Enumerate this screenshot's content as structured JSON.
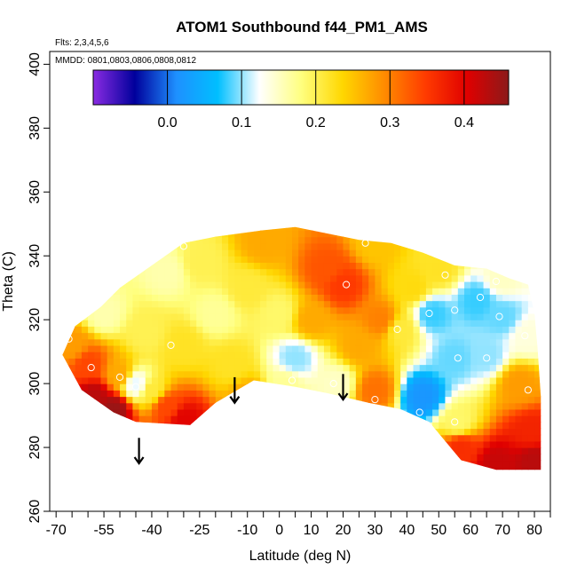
{
  "chart_data": {
    "type": "heatmap",
    "title": "ATOM1 Southbound f44_PM1_AMS",
    "annotations": [
      "Flts: 2,3,4,5,6",
      "MMDD: 0801,0803,0806,0808,0812"
    ],
    "xlabel": "Latitude (deg N)",
    "ylabel": "Theta (C)",
    "xlim": [
      -72,
      85
    ],
    "ylim": [
      260,
      404
    ],
    "x_tick_labels": [
      "-70",
      "-55",
      "-40",
      "-25",
      "-10",
      "0",
      "10",
      "20",
      "30",
      "40",
      "50",
      "60",
      "70",
      "80"
    ],
    "x_tick_values": [
      -70,
      -55,
      -40,
      -25,
      -10,
      0,
      10,
      20,
      30,
      40,
      50,
      60,
      70,
      80
    ],
    "x_minor_ticks": [
      -65,
      -60,
      -50,
      -45,
      -35,
      -30,
      -20,
      -15,
      -5,
      5,
      15,
      25,
      35,
      45,
      55,
      65,
      75,
      85
    ],
    "y_tick_labels": [
      "260",
      "280",
      "300",
      "320",
      "340",
      "360",
      "380",
      "400"
    ],
    "y_tick_values": [
      260,
      280,
      300,
      320,
      340,
      360,
      380,
      400
    ],
    "colorbar": {
      "range": [
        -0.1,
        0.46
      ],
      "tick_values": [
        0.0,
        0.1,
        0.2,
        0.3,
        0.4
      ],
      "tick_labels": [
        "0.0",
        "0.1",
        "0.2",
        "0.3",
        "0.4"
      ],
      "colors": [
        "#8a2be2",
        "#00009c",
        "#1e90ff",
        "#00bfff",
        "#ffffff",
        "#ffff80",
        "#ffd700",
        "#ff8c00",
        "#ff3b00",
        "#e00000",
        "#8b1a1a"
      ]
    },
    "field_boundary_theta": [
      [
        -68,
        309
      ],
      [
        -64,
        318
      ],
      [
        -56,
        324
      ],
      [
        -50,
        330
      ],
      [
        -40,
        337
      ],
      [
        -30,
        344
      ],
      [
        -20,
        346
      ],
      [
        -5,
        348
      ],
      [
        5,
        349
      ],
      [
        15,
        347
      ],
      [
        25,
        345
      ],
      [
        35,
        344
      ],
      [
        45,
        341
      ],
      [
        55,
        337
      ],
      [
        65,
        336
      ],
      [
        72,
        333
      ],
      [
        78,
        331
      ],
      [
        80,
        322
      ],
      [
        81,
        311
      ],
      [
        82,
        296
      ],
      [
        82,
        273
      ],
      [
        68,
        273
      ],
      [
        57,
        276
      ],
      [
        52,
        282
      ],
      [
        47,
        288
      ],
      [
        38,
        292
      ],
      [
        28,
        294
      ],
      [
        15,
        297
      ],
      [
        5,
        299
      ],
      [
        -8,
        301
      ],
      [
        -20,
        294
      ],
      [
        -28,
        287
      ],
      [
        -45,
        288
      ],
      [
        -52,
        291
      ],
      [
        -62,
        298
      ],
      [
        -68,
        309
      ]
    ],
    "field_points": [
      {
        "lat": -65,
        "theta": 312,
        "value": 0.28
      },
      {
        "lat": -60,
        "theta": 306,
        "value": 0.34
      },
      {
        "lat": -58,
        "theta": 296,
        "value": 0.43
      },
      {
        "lat": -52,
        "theta": 292,
        "value": 0.45
      },
      {
        "lat": -50,
        "theta": 303,
        "value": 0.27
      },
      {
        "lat": -45,
        "theta": 300,
        "value": 0.12
      },
      {
        "lat": -40,
        "theta": 298,
        "value": 0.21
      },
      {
        "lat": -35,
        "theta": 293,
        "value": 0.34
      },
      {
        "lat": -30,
        "theta": 289,
        "value": 0.4
      },
      {
        "lat": -55,
        "theta": 322,
        "value": 0.16
      },
      {
        "lat": -42,
        "theta": 316,
        "value": 0.2
      },
      {
        "lat": -30,
        "theta": 312,
        "value": 0.22
      },
      {
        "lat": -35,
        "theta": 335,
        "value": 0.16
      },
      {
        "lat": -25,
        "theta": 338,
        "value": 0.2
      },
      {
        "lat": -20,
        "theta": 322,
        "value": 0.17
      },
      {
        "lat": -15,
        "theta": 306,
        "value": 0.22
      },
      {
        "lat": -10,
        "theta": 296,
        "value": 0.27
      },
      {
        "lat": -10,
        "theta": 330,
        "value": 0.21
      },
      {
        "lat": -5,
        "theta": 344,
        "value": 0.27
      },
      {
        "lat": 2,
        "theta": 300,
        "value": 0.17
      },
      {
        "lat": 5,
        "theta": 308,
        "value": 0.1
      },
      {
        "lat": 0,
        "theta": 322,
        "value": 0.19
      },
      {
        "lat": 10,
        "theta": 320,
        "value": 0.27
      },
      {
        "lat": 15,
        "theta": 336,
        "value": 0.33
      },
      {
        "lat": 20,
        "theta": 331,
        "value": 0.35
      },
      {
        "lat": 18,
        "theta": 300,
        "value": 0.15
      },
      {
        "lat": 25,
        "theta": 312,
        "value": 0.27
      },
      {
        "lat": 30,
        "theta": 298,
        "value": 0.31
      },
      {
        "lat": 32,
        "theta": 320,
        "value": 0.3
      },
      {
        "lat": 30,
        "theta": 344,
        "value": 0.25
      },
      {
        "lat": 38,
        "theta": 317,
        "value": 0.21
      },
      {
        "lat": 42,
        "theta": 330,
        "value": 0.23
      },
      {
        "lat": 45,
        "theta": 296,
        "value": 0.02
      },
      {
        "lat": 48,
        "theta": 322,
        "value": 0.08
      },
      {
        "lat": 50,
        "theta": 336,
        "value": 0.22
      },
      {
        "lat": 55,
        "theta": 308,
        "value": 0.09
      },
      {
        "lat": 56,
        "theta": 288,
        "value": 0.19
      },
      {
        "lat": 57,
        "theta": 280,
        "value": 0.36
      },
      {
        "lat": 62,
        "theta": 326,
        "value": 0.08
      },
      {
        "lat": 65,
        "theta": 309,
        "value": 0.1
      },
      {
        "lat": 70,
        "theta": 321,
        "value": 0.09
      },
      {
        "lat": 70,
        "theta": 333,
        "value": 0.15
      },
      {
        "lat": 75,
        "theta": 300,
        "value": 0.28
      },
      {
        "lat": 78,
        "theta": 315,
        "value": 0.14
      },
      {
        "lat": 79,
        "theta": 285,
        "value": 0.37
      },
      {
        "lat": 80,
        "theta": 276,
        "value": 0.43
      },
      {
        "lat": 68,
        "theta": 275,
        "value": 0.42
      }
    ],
    "observation_points": [
      {
        "lat": -66,
        "theta": 314
      },
      {
        "lat": -59,
        "theta": 305
      },
      {
        "lat": -50,
        "theta": 302
      },
      {
        "lat": -45,
        "theta": 299
      },
      {
        "lat": -34,
        "theta": 312
      },
      {
        "lat": -30,
        "theta": 286
      },
      {
        "lat": -30,
        "theta": 343
      },
      {
        "lat": 4,
        "theta": 301
      },
      {
        "lat": 17,
        "theta": 300
      },
      {
        "lat": 21,
        "theta": 331
      },
      {
        "lat": 27,
        "theta": 344
      },
      {
        "lat": 30,
        "theta": 295
      },
      {
        "lat": 37,
        "theta": 317
      },
      {
        "lat": 44,
        "theta": 291
      },
      {
        "lat": 47,
        "theta": 322
      },
      {
        "lat": 52,
        "theta": 334
      },
      {
        "lat": 55,
        "theta": 323
      },
      {
        "lat": 56,
        "theta": 308
      },
      {
        "lat": 55,
        "theta": 288
      },
      {
        "lat": 63,
        "theta": 327
      },
      {
        "lat": 65,
        "theta": 308
      },
      {
        "lat": 68,
        "theta": 332
      },
      {
        "lat": 69,
        "theta": 321
      },
      {
        "lat": 77,
        "theta": 315
      },
      {
        "lat": 78,
        "theta": 298
      }
    ],
    "arrows": [
      {
        "lat": -44,
        "theta_top": 283,
        "theta_bottom": 275
      },
      {
        "lat": -14,
        "theta_top": 302,
        "theta_bottom": 294
      },
      {
        "lat": 20,
        "theta_top": 303,
        "theta_bottom": 295
      }
    ]
  }
}
